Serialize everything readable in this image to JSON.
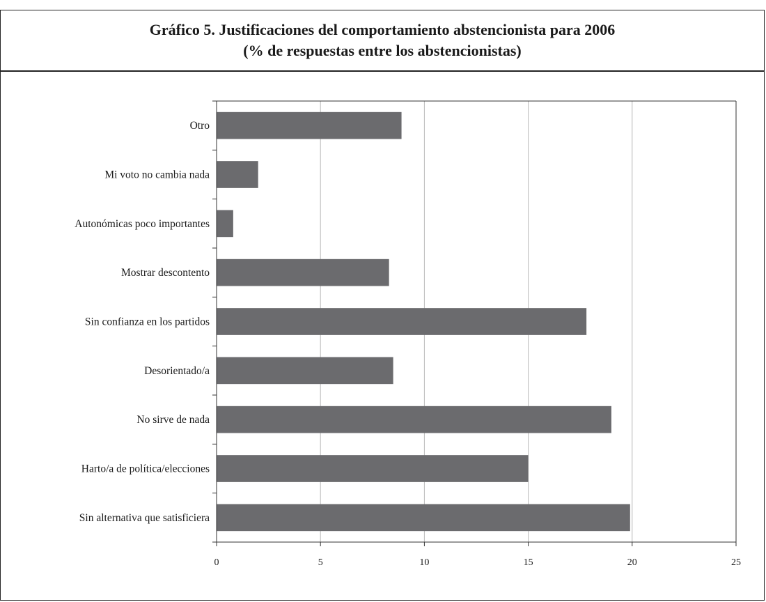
{
  "chart_data": {
    "type": "bar",
    "orientation": "horizontal",
    "title_line1": "Gráfico 5. Justificaciones del comportamiento abstencionista para 2006",
    "title_line2": "(% de respuestas entre los abstencionistas)",
    "xlabel": "",
    "ylabel": "",
    "xlim": [
      0,
      25
    ],
    "x_ticks": [
      0,
      5,
      10,
      15,
      20,
      25
    ],
    "x_tick_labels": [
      "0",
      "5",
      "10",
      "15",
      "20",
      "25"
    ],
    "grid": "vertical",
    "legend": "none",
    "bar_color": "#6b6b6e",
    "categories": [
      "Otro",
      "Mi voto no cambia nada",
      "Autonómicas poco importantes",
      "Mostrar descontento",
      "Sin confianza en los partidos",
      "Desorientado/a",
      "No sirve de nada",
      "Harto/a de política/elecciones",
      "Sin alternativa que satisficiera"
    ],
    "values": [
      8.9,
      2.0,
      0.8,
      8.3,
      17.8,
      8.5,
      19.0,
      15.0,
      19.9
    ]
  }
}
